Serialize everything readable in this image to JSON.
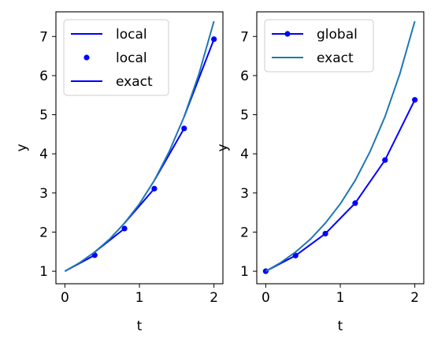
{
  "chart_data": [
    {
      "type": "line",
      "xlabel": "t",
      "ylabel": "y",
      "xlim": [
        -0.12,
        2.12
      ],
      "ylim": [
        0.68,
        7.63
      ],
      "x_ticks": [
        0,
        1,
        2
      ],
      "y_ticks": [
        1,
        2,
        3,
        4,
        5,
        6,
        7
      ],
      "legend_position": "top-left",
      "legend": [
        {
          "label": "local",
          "style": "line",
          "color": "#0000ff"
        },
        {
          "label": "local",
          "style": "marker",
          "color": "#0000ff"
        },
        {
          "label": "exact",
          "style": "line",
          "color": "#0000ff"
        }
      ],
      "series": [
        {
          "style": "line",
          "color": "#0000ff",
          "segments": [
            {
              "x": [
                0.0,
                0.4
              ],
              "y": [
                1.0,
                1.41
              ]
            },
            {
              "x": [
                0.4,
                0.8
              ],
              "y": [
                1.49,
                2.09
              ]
            },
            {
              "x": [
                0.8,
                1.2
              ],
              "y": [
                2.23,
                3.11
              ]
            },
            {
              "x": [
                1.2,
                1.6
              ],
              "y": [
                3.32,
                4.65
              ]
            },
            {
              "x": [
                1.6,
                2.0
              ],
              "y": [
                4.95,
                6.93
              ]
            }
          ]
        },
        {
          "style": "marker",
          "color": "#0000ff",
          "x": [
            0.4,
            0.8,
            1.2,
            1.6,
            2.0
          ],
          "y": [
            1.41,
            2.09,
            3.11,
            4.65,
            6.93
          ]
        },
        {
          "style": "line",
          "color": "#1f77b4",
          "x": [
            0.0,
            0.2,
            0.4,
            0.6,
            0.8,
            1.0,
            1.2,
            1.4,
            1.6,
            1.8,
            2.0
          ],
          "y": [
            1.0,
            1.22,
            1.49,
            1.82,
            2.23,
            2.72,
            3.32,
            4.06,
            4.95,
            6.05,
            7.39
          ]
        }
      ]
    },
    {
      "type": "line",
      "xlabel": "t",
      "ylabel": "y",
      "xlim": [
        -0.12,
        2.12
      ],
      "ylim": [
        0.68,
        7.63
      ],
      "x_ticks": [
        0,
        1,
        2
      ],
      "y_ticks": [
        1,
        2,
        3,
        4,
        5,
        6,
        7
      ],
      "legend_position": "top-left",
      "legend": [
        {
          "label": "global",
          "style": "line-marker",
          "color": "#0000ff"
        },
        {
          "label": "exact",
          "style": "line",
          "color": "#1f77b4"
        }
      ],
      "series": [
        {
          "style": "line-marker",
          "color": "#0000ff",
          "x": [
            0.0,
            0.4,
            0.8,
            1.2,
            1.6,
            2.0
          ],
          "y": [
            1.0,
            1.4,
            1.96,
            2.74,
            3.84,
            5.38
          ]
        },
        {
          "style": "line",
          "color": "#1f77b4",
          "x": [
            0.0,
            0.2,
            0.4,
            0.6,
            0.8,
            1.0,
            1.2,
            1.4,
            1.6,
            1.8,
            2.0
          ],
          "y": [
            1.0,
            1.22,
            1.49,
            1.82,
            2.23,
            2.72,
            3.32,
            4.06,
            4.95,
            6.05,
            7.39
          ]
        }
      ]
    }
  ]
}
